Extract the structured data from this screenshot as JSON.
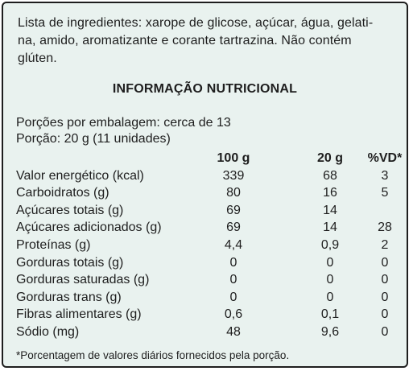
{
  "ingredients": {
    "line1": "Lista de ingredientes: xarope de glicose, açúcar, água, gelati-",
    "line2": "na, amido, aromatizante e corante tartrazina. Não contém",
    "line3": "glúten."
  },
  "title": "INFORMAÇÃO NUTRICIONAL",
  "portions_per_package": "Porções por embalagem: cerca de 13",
  "portion": "Porção: 20 g (11 unidades)",
  "table": {
    "headers": [
      "",
      "100 g",
      "20 g",
      "%VD*"
    ],
    "rows": [
      [
        "Valor energético (kcal)",
        "339",
        "68",
        "3"
      ],
      [
        "Carboidratos (g)",
        "80",
        "16",
        "5"
      ],
      [
        "Açúcares totais (g)",
        "69",
        "14",
        ""
      ],
      [
        "Açúcares adicionados (g)",
        "69",
        "14",
        "28"
      ],
      [
        "Proteínas (g)",
        "4,4",
        "0,9",
        "2"
      ],
      [
        "Gorduras totais (g)",
        "0",
        "0",
        "0"
      ],
      [
        "Gorduras saturadas (g)",
        "0",
        "0",
        "0"
      ],
      [
        "Gorduras trans (g)",
        "0",
        "0",
        "0"
      ],
      [
        "Fibras alimentares (g)",
        "0,6",
        "0,1",
        "0"
      ],
      [
        "Sódio (mg)",
        "48",
        "9,6",
        "0"
      ]
    ]
  },
  "footnote": "*Porcentagem de valores diários fornecidos pela porção.",
  "colors": {
    "background": "#e9f2ef",
    "border": "#1e1e1e",
    "text": "#1e1e1e"
  }
}
